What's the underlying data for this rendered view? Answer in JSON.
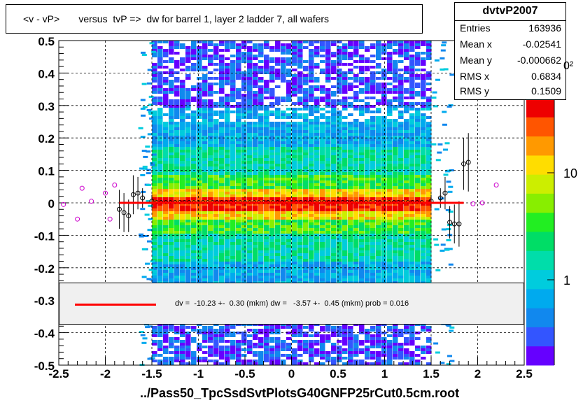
{
  "title": "<v - vP>       versus  tvP =>  dw for barrel 1, layer 2 ladder 7, all wafers",
  "x_title": "../Pass50_TpcSsdSvtPlotsG40GNFP25rCut0.5cm.root",
  "stats": {
    "name": "dvtvP2007",
    "rows": [
      {
        "key": "Entries",
        "value": "163936"
      },
      {
        "key": "Mean x",
        "value": "-0.02541"
      },
      {
        "key": "Mean y",
        "value": "-0.000662"
      },
      {
        "key": "RMS x",
        "value": "0.6834"
      },
      {
        "key": "RMS y",
        "value": "0.1509"
      }
    ]
  },
  "fit_text": "dv =  -10.23 +-  0.30 (mkm) dw =   -3.57 +-  0.45 (mkm) prob = 0.016",
  "colorbar": {
    "labels": [
      "1",
      "10"
    ],
    "overflow_label": "0²"
  },
  "chart_data": {
    "type": "heatmap",
    "xlim": [
      -2.5,
      2.5
    ],
    "ylim": [
      -0.5,
      0.5
    ],
    "x_ticks": [
      "-2.5",
      "-2",
      "-1.5",
      "-1",
      "-0.5",
      "0",
      "0.5",
      "1",
      "1.5",
      "2",
      "2.5"
    ],
    "y_ticks": [
      "-0.5",
      "-0.4",
      "-0.3",
      "-0.2",
      "-0.1",
      "0",
      "0.1",
      "0.2",
      "0.3",
      "0.4",
      "0.5"
    ],
    "grid": true,
    "band": {
      "x_range": [
        -1.5,
        1.5
      ],
      "y_center": 0.0
    },
    "fit_line": {
      "x_range": [
        -1.85,
        1.85
      ],
      "y": 0.0,
      "color": "#ff0000"
    },
    "profile_points": [
      {
        "x": -2.45,
        "y": -0.005,
        "err": 0.0
      },
      {
        "x": -2.3,
        "y": -0.05,
        "err": 0.0
      },
      {
        "x": -2.25,
        "y": 0.045,
        "err": 0.0
      },
      {
        "x": -2.15,
        "y": 0.005,
        "err": 0.0
      },
      {
        "x": -2.0,
        "y": 0.03,
        "err": 0.0
      },
      {
        "x": -1.95,
        "y": -0.05,
        "err": 0.0
      },
      {
        "x": -1.9,
        "y": 0.055,
        "err": 0.0
      },
      {
        "x": -1.85,
        "y": -0.02,
        "err": 0.06
      },
      {
        "x": -1.8,
        "y": -0.03,
        "err": 0.06
      },
      {
        "x": -1.75,
        "y": -0.04,
        "err": 0.05
      },
      {
        "x": -1.7,
        "y": 0.025,
        "err": 0.06
      },
      {
        "x": -1.65,
        "y": 0.03,
        "err": 0.05
      },
      {
        "x": -1.6,
        "y": 0.015,
        "err": 0.03
      },
      {
        "x": -1.5,
        "y": 0.005,
        "err": 0.02
      },
      {
        "x": 1.5,
        "y": 0.005,
        "err": 0.02
      },
      {
        "x": 1.6,
        "y": 0.015,
        "err": 0.03
      },
      {
        "x": 1.65,
        "y": 0.03,
        "err": 0.05
      },
      {
        "x": 1.7,
        "y": -0.06,
        "err": 0.05
      },
      {
        "x": 1.75,
        "y": -0.065,
        "err": 0.06
      },
      {
        "x": 1.8,
        "y": -0.065,
        "err": 0.07
      },
      {
        "x": 1.85,
        "y": 0.12,
        "err": 0.08
      },
      {
        "x": 1.9,
        "y": 0.125,
        "err": 0.09
      },
      {
        "x": 1.95,
        "y": -0.003,
        "err": 0.0
      },
      {
        "x": 2.05,
        "y": 0.0,
        "err": 0.0
      },
      {
        "x": 2.2,
        "y": 0.055,
        "err": 0.0
      }
    ]
  },
  "colors": {
    "fit": "#ff0000",
    "profile_marker": "#000000",
    "profile_marker_alt": "#cc00cc"
  }
}
